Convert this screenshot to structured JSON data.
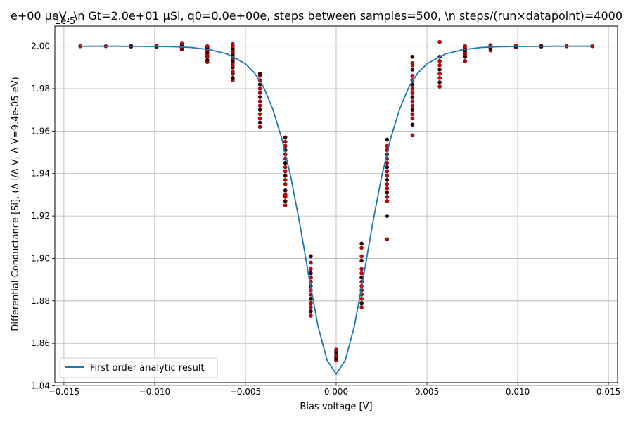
{
  "chart_data": {
    "type": "scatter",
    "title": "e+00 μeV, \\n Gt=2.0e+01 μSi, q0=0.0e+00e, steps between samples=500, \\n steps/(run×datapoint)=4000",
    "xlabel": "Bias voltage [V]",
    "ylabel": "Differential Conductance [Si], (Δ I/Δ V, Δ V=9.4e-05 eV)",
    "y_offset_label": "1e-5",
    "xlim": [
      -0.0155,
      0.0155
    ],
    "ylim": [
      1.8415e-05,
      2.0095e-05
    ],
    "grid": true,
    "legend_position": "lower-left",
    "x_ticks": [
      -0.015,
      -0.01,
      -0.005,
      0.0,
      0.005,
      0.01,
      0.015
    ],
    "x_tick_labels": [
      "−0.015",
      "−0.010",
      "−0.005",
      "0.000",
      "0.005",
      "0.010",
      "0.015"
    ],
    "y_ticks": [
      1.84e-05,
      1.86e-05,
      1.88e-05,
      1.9e-05,
      1.92e-05,
      1.94e-05,
      1.96e-05,
      1.98e-05,
      2e-05
    ],
    "y_tick_labels": [
      "1.84",
      "1.86",
      "1.88",
      "1.90",
      "1.92",
      "1.94",
      "1.96",
      "1.98",
      "2.00"
    ],
    "series": [
      {
        "name": "First order analytic result",
        "kind": "line",
        "color": "#1f77b4",
        "x": [
          -0.0141,
          -0.012,
          -0.01,
          -0.009,
          -0.008,
          -0.007,
          -0.006,
          -0.005,
          -0.0045,
          -0.004,
          -0.0035,
          -0.003,
          -0.0025,
          -0.002,
          -0.0015,
          -0.001,
          -0.0005,
          0.0,
          0.0005,
          0.001,
          0.0015,
          0.002,
          0.0025,
          0.003,
          0.0035,
          0.004,
          0.0045,
          0.005,
          0.006,
          0.007,
          0.008,
          0.009,
          0.01,
          0.012,
          0.0141
        ],
        "y": [
          2e-05,
          2e-05,
          1.9999e-05,
          1.9998e-05,
          1.9994e-05,
          1.9984e-05,
          1.9963e-05,
          1.9917e-05,
          1.9874e-05,
          1.9807e-05,
          1.9705e-05,
          1.9565e-05,
          1.9384e-05,
          1.9161e-05,
          1.8912e-05,
          1.868e-05,
          1.852e-05,
          1.8455e-05,
          1.852e-05,
          1.868e-05,
          1.8912e-05,
          1.9161e-05,
          1.9384e-05,
          1.9565e-05,
          1.9705e-05,
          1.9807e-05,
          1.9874e-05,
          1.9917e-05,
          1.9963e-05,
          1.9984e-05,
          1.9994e-05,
          1.9998e-05,
          1.9999e-05,
          2e-05,
          2e-05
        ]
      },
      {
        "name": "",
        "kind": "scatter",
        "color": "#d40000",
        "edge_color": "#000000",
        "clusters": [
          {
            "x": -0.0141,
            "y": [
              2e-05
            ]
          },
          {
            "x": -0.0127,
            "y": [
              2e-05
            ]
          },
          {
            "x": -0.0113,
            "y": [
              1.9998e-05,
              2.0001e-05
            ]
          },
          {
            "x": -0.0099,
            "y": [
              1.9995e-05,
              2e-05,
              2.0003e-05
            ]
          },
          {
            "x": -0.0085,
            "y": [
              1.9985e-05,
              1.999e-05,
              1.9995e-05,
              2e-05,
              2.0005e-05,
              2.0012e-05
            ]
          },
          {
            "x": -0.0071,
            "y": [
              1.9925e-05,
              1.9935e-05,
              1.995e-05,
              1.996e-05,
              1.997e-05,
              1.998e-05,
              1.999e-05,
              1.9995e-05,
              2e-05
            ]
          },
          {
            "x": -0.0057,
            "y": [
              1.984e-05,
              1.985e-05,
              1.987e-05,
              1.988e-05,
              1.99e-05,
              1.991e-05,
              1.992e-05,
              1.993e-05,
              1.994e-05,
              1.995e-05,
              1.996e-05,
              1.997e-05,
              1.998e-05,
              1.999e-05,
              2e-05,
              2.001e-05
            ]
          },
          {
            "x": -0.0042,
            "y": [
              1.962e-05,
              1.964e-05,
              1.966e-05,
              1.968e-05,
              1.97e-05,
              1.972e-05,
              1.974e-05,
              1.976e-05,
              1.978e-05,
              1.98e-05,
              1.982e-05,
              1.984e-05,
              1.986e-05,
              1.987e-05
            ]
          },
          {
            "x": -0.0028,
            "y": [
              1.925e-05,
              1.927e-05,
              1.929e-05,
              1.93e-05,
              1.932e-05,
              1.935e-05,
              1.937e-05,
              1.939e-05,
              1.941e-05,
              1.943e-05,
              1.945e-05,
              1.947e-05,
              1.949e-05,
              1.951e-05,
              1.953e-05,
              1.955e-05,
              1.957e-05
            ]
          },
          {
            "x": -0.0014,
            "y": [
              1.873e-05,
              1.875e-05,
              1.877e-05,
              1.879e-05,
              1.881e-05,
              1.883e-05,
              1.885e-05,
              1.887e-05,
              1.889e-05,
              1.891e-05,
              1.893e-05,
              1.895e-05,
              1.898e-05,
              1.901e-05
            ]
          },
          {
            "x": 0.0,
            "y": [
              1.852e-05,
              1.853e-05,
              1.854e-05,
              1.855e-05,
              1.856e-05,
              1.857e-05
            ]
          },
          {
            "x": 0.0014,
            "y": [
              1.877e-05,
              1.879e-05,
              1.881e-05,
              1.883e-05,
              1.885e-05,
              1.887e-05,
              1.889e-05,
              1.891e-05,
              1.893e-05,
              1.895e-05,
              1.899e-05,
              1.901e-05,
              1.905e-05,
              1.907e-05
            ]
          },
          {
            "x": 0.0028,
            "y": [
              1.909e-05,
              1.92e-05,
              1.927e-05,
              1.929e-05,
              1.931e-05,
              1.933e-05,
              1.935e-05,
              1.937e-05,
              1.939e-05,
              1.941e-05,
              1.943e-05,
              1.945e-05,
              1.947e-05,
              1.949e-05,
              1.951e-05,
              1.953e-05,
              1.956e-05
            ]
          },
          {
            "x": 0.0042,
            "y": [
              1.958e-05,
              1.963e-05,
              1.966e-05,
              1.968e-05,
              1.97e-05,
              1.972e-05,
              1.974e-05,
              1.976e-05,
              1.978e-05,
              1.98e-05,
              1.982e-05,
              1.984e-05,
              1.986e-05,
              1.989e-05,
              1.991e-05,
              1.992e-05,
              1.995e-05
            ]
          },
          {
            "x": 0.0057,
            "y": [
              1.981e-05,
              1.983e-05,
              1.985e-05,
              1.987e-05,
              1.989e-05,
              1.991e-05,
              1.993e-05,
              1.995e-05,
              2.002e-05
            ]
          },
          {
            "x": 0.0071,
            "y": [
              1.993e-05,
              1.995e-05,
              1.996e-05,
              1.997e-05,
              1.998e-05,
              1.999e-05,
              2e-05
            ]
          },
          {
            "x": 0.0085,
            "y": [
              1.998e-05,
              1.999e-05,
              2e-05,
              2.0005e-05
            ]
          },
          {
            "x": 0.0099,
            "y": [
              1.9995e-05,
              2e-05,
              2.0003e-05
            ]
          },
          {
            "x": 0.0113,
            "y": [
              1.9998e-05,
              2.0001e-05
            ]
          },
          {
            "x": 0.0127,
            "y": [
              2e-05
            ]
          },
          {
            "x": 0.0141,
            "y": [
              2e-05
            ]
          }
        ]
      }
    ]
  }
}
